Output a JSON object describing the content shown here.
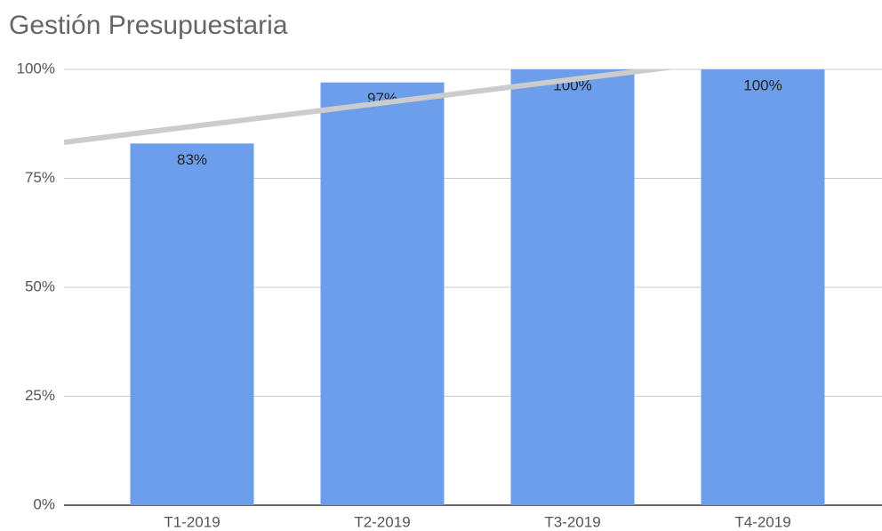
{
  "chart_data": {
    "type": "bar",
    "title": "Gestión Presupuestaria",
    "categories": [
      "T1-2019",
      "T2-2019",
      "T3-2019",
      "T4-2019"
    ],
    "values": [
      83,
      97,
      100,
      100
    ],
    "value_labels": [
      "83%",
      "97%",
      "100%",
      "100%"
    ],
    "color": "#6d9eeb",
    "ylim": [
      0,
      100
    ],
    "yticks": [
      {
        "value": 0,
        "label": "0%"
      },
      {
        "value": 25,
        "label": "25%"
      },
      {
        "value": 50,
        "label": "50%"
      },
      {
        "value": 75,
        "label": "75%"
      },
      {
        "value": 100,
        "label": "100%"
      }
    ],
    "grid": true,
    "trendline": true,
    "trendline_color": "#cccccc"
  }
}
